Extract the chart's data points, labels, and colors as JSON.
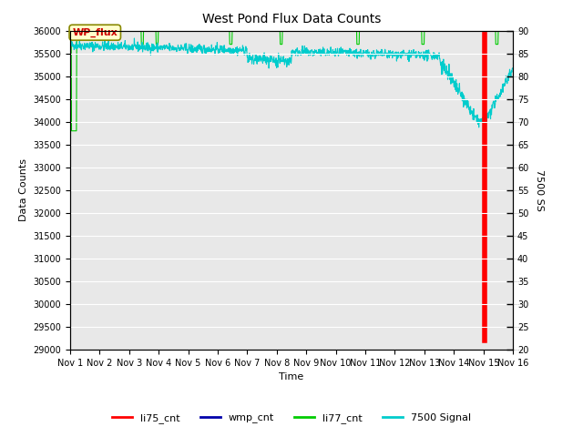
{
  "title": "West Pond Flux Data Counts",
  "xlabel": "Time",
  "ylabel_left": "Data Counts",
  "ylabel_right": "7500 SS",
  "ylim_left": [
    29000,
    36000
  ],
  "ylim_right": [
    20,
    90
  ],
  "yticks_left": [
    29000,
    29500,
    30000,
    30500,
    31000,
    31500,
    32000,
    32500,
    33000,
    33500,
    34000,
    34500,
    35000,
    35500,
    36000
  ],
  "yticks_right": [
    20,
    25,
    30,
    35,
    40,
    45,
    50,
    55,
    60,
    65,
    70,
    75,
    80,
    85,
    90
  ],
  "xlim": [
    0,
    15
  ],
  "xtick_labels": [
    "Nov 1",
    "Nov 2",
    "Nov 3",
    "Nov 4",
    "Nov 5",
    "Nov 6",
    "Nov 7",
    "Nov 8",
    "Nov 9",
    "Nov 10",
    "Nov 11",
    "Nov 12",
    "Nov 13",
    "Nov 14",
    "Nov 15",
    "Nov 16"
  ],
  "xtick_positions": [
    0,
    1,
    2,
    3,
    4,
    5,
    6,
    7,
    8,
    9,
    10,
    11,
    12,
    13,
    14,
    15
  ],
  "bg_color": "#e8e8e8",
  "annotation_text": "WP_flux",
  "annotation_color": "#cc0000",
  "annotation_bg": "#ffffcc",
  "legend_entries": [
    "li75_cnt",
    "wmp_cnt",
    "li77_cnt",
    "7500 Signal"
  ],
  "legend_colors": [
    "#ff0000",
    "#0000aa",
    "#00cc00",
    "#00cccc"
  ]
}
